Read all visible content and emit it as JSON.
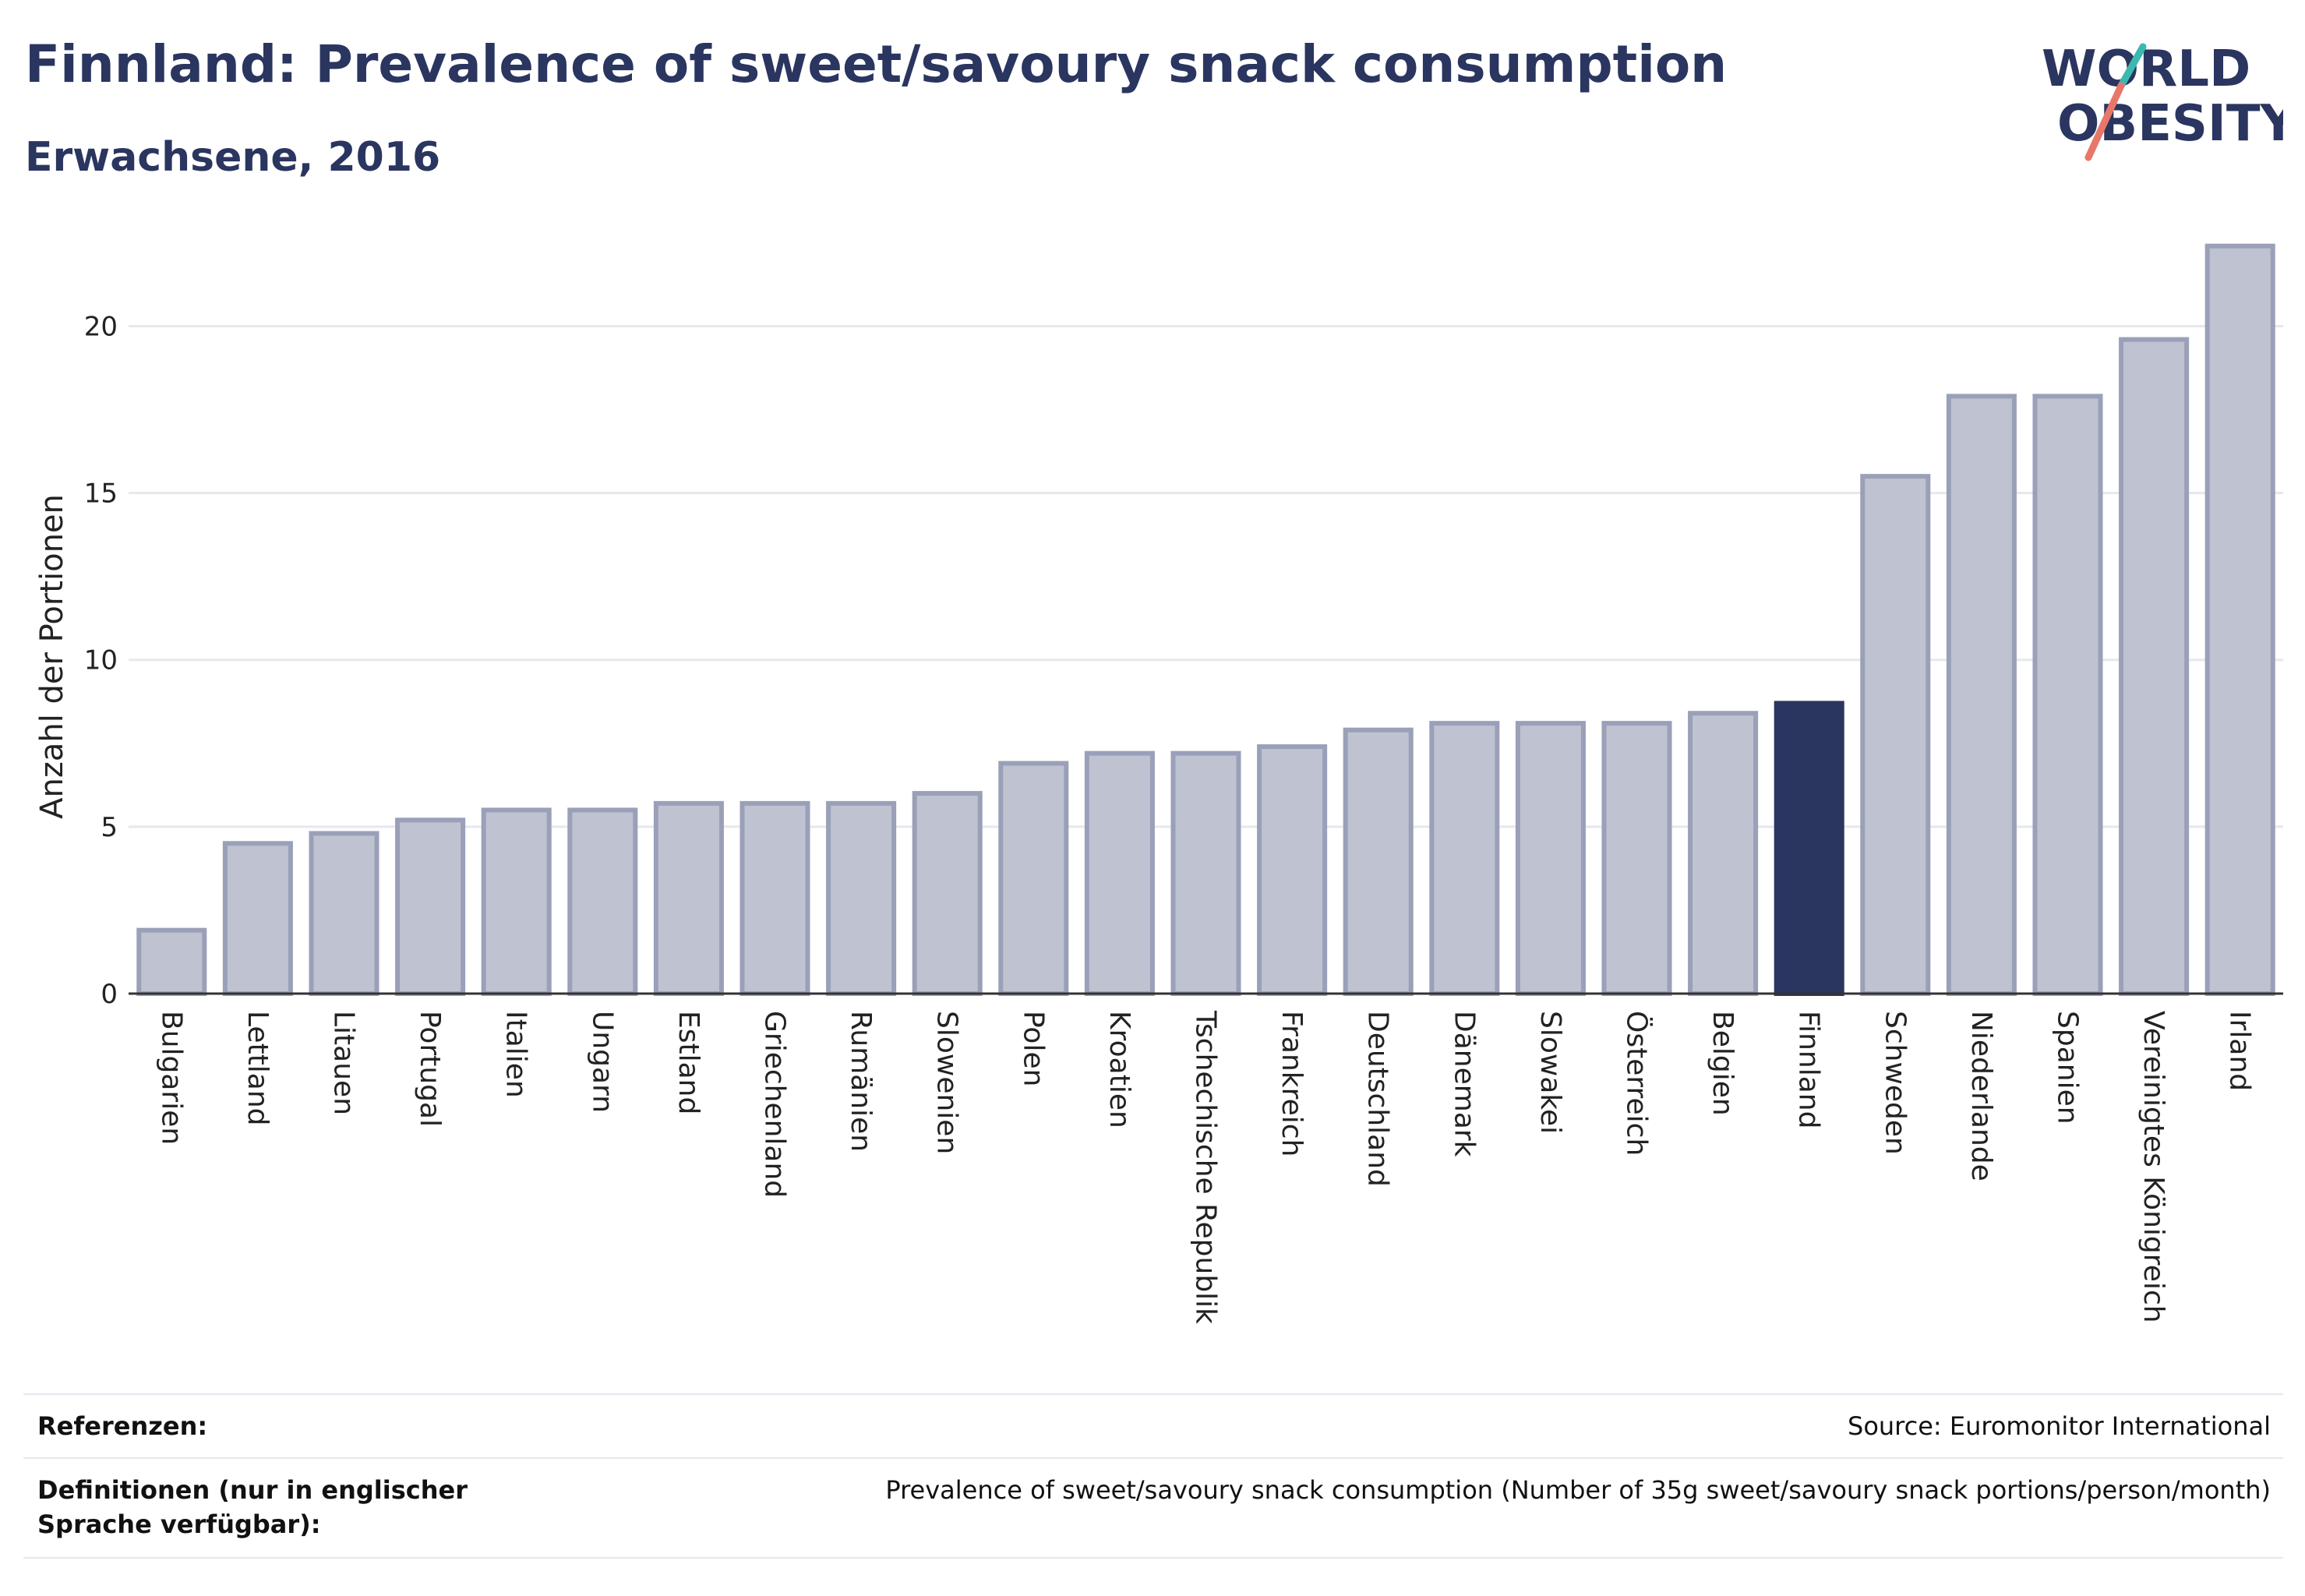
{
  "header": {
    "title": "Finnland: Prevalence of sweet/savoury snack consumption",
    "subtitle": "Erwachsene, 2016"
  },
  "logo": {
    "line1": "WORLD",
    "line2": "OBESITY",
    "accent_teal": "#3bb8b0",
    "accent_coral": "#e8776a",
    "text_color": "#2a3560"
  },
  "chart_data": {
    "type": "bar",
    "ylabel": "Anzahl der Portionen",
    "ylim": [
      0,
      23
    ],
    "yticks": [
      0,
      5,
      10,
      15,
      20
    ],
    "grid": true,
    "highlight": "Finnland",
    "colors": {
      "bar": "#bfc2d0",
      "bar_border": "#9aa0b8",
      "highlight": "#2a3560"
    },
    "categories": [
      "Bulgarien",
      "Lettland",
      "Litauen",
      "Portugal",
      "Italien",
      "Ungarn",
      "Estland",
      "Griechenland",
      "Rumänien",
      "Slowenien",
      "Polen",
      "Kroatien",
      "Tschechische Republik",
      "Frankreich",
      "Deutschland",
      "Dänemark",
      "Slowakei",
      "Österreich",
      "Belgien",
      "Finnland",
      "Schweden",
      "Niederlande",
      "Spanien",
      "Vereinigtes Königreich",
      "Irland"
    ],
    "values": [
      1.9,
      4.5,
      4.8,
      5.2,
      5.5,
      5.5,
      5.7,
      5.7,
      5.7,
      6.0,
      6.9,
      7.2,
      7.2,
      7.4,
      7.9,
      8.1,
      8.1,
      8.1,
      8.4,
      8.7,
      15.5,
      17.9,
      17.9,
      19.6,
      22.4
    ]
  },
  "footer": {
    "references_label": "Referenzen:",
    "references_value": "Source: Euromonitor International",
    "definitions_label": "Definitionen (nur in englischer Sprache verfügbar):",
    "definitions_value": "Prevalence of sweet/savoury snack consumption (Number of 35g sweet/savoury snack portions/person/month)"
  }
}
